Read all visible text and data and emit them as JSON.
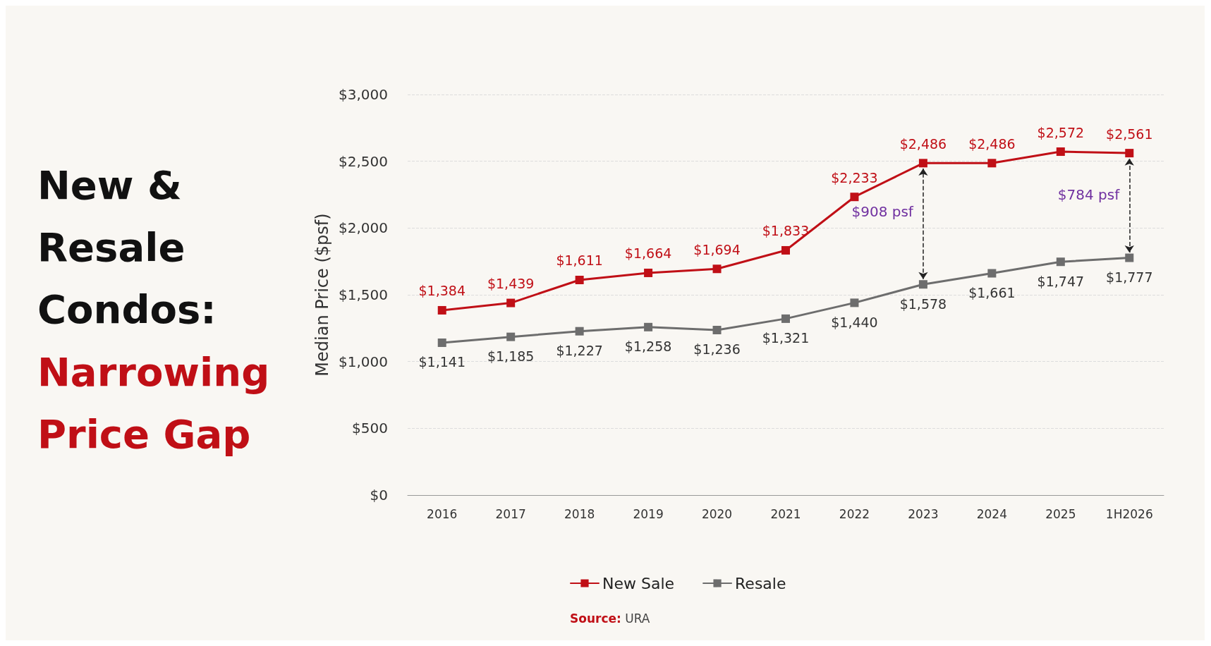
{
  "chart_data": {
    "type": "line",
    "title": "New & Resale Condos:",
    "subtitle": "Narrowing Price Gap",
    "ylabel": "Median Price ($psf)",
    "categories": [
      "2016",
      "2017",
      "2018",
      "2019",
      "2020",
      "2021",
      "2022",
      "2023",
      "2024",
      "2025",
      "1H2026"
    ],
    "series": [
      {
        "name": "New Sale",
        "color": "#c00f16",
        "values": [
          1384,
          1439,
          1611,
          1664,
          1694,
          1833,
          2233,
          2486,
          2486,
          2572,
          2561
        ],
        "value_labels": [
          "$1,384",
          "$1,439",
          "$1,611",
          "$1,664",
          "$1,694",
          "$1,833",
          "$2,233",
          "$2,486",
          "$2,486",
          "$2,572",
          "$2,561"
        ]
      },
      {
        "name": "Resale",
        "color": "#6d6d6d",
        "values": [
          1141,
          1185,
          1227,
          1258,
          1236,
          1321,
          1440,
          1578,
          1661,
          1747,
          1777
        ],
        "value_labels": [
          "$1,141",
          "$1,185",
          "$1,227",
          "$1,258",
          "$1,236",
          "$1,321",
          "$1,440",
          "$1,578",
          "$1,661",
          "$1,747",
          "$1,777"
        ]
      }
    ],
    "ylim": [
      0,
      3000
    ],
    "yticks": [
      {
        "value": 0,
        "label": "$0"
      },
      {
        "value": 500,
        "label": "$500"
      },
      {
        "value": 1000,
        "label": "$1,000"
      },
      {
        "value": 1500,
        "label": "$1,500"
      },
      {
        "value": 2000,
        "label": "$2,000"
      },
      {
        "value": 2500,
        "label": "$2,500"
      },
      {
        "value": 3000,
        "label": "$3,000"
      }
    ],
    "annotations": [
      "$908 psf",
      "$784 psf",
      "Source: URA"
    ],
    "grid": "y",
    "legend": "bottom",
    "marker": "square",
    "line_style": "solid"
  }
}
